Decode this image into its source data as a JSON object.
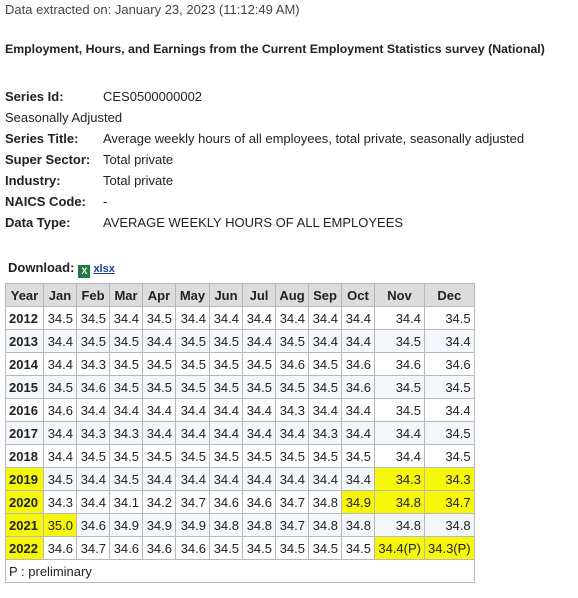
{
  "header": {
    "extracted": "Data extracted on: January 23, 2023 (11:12:49 AM)",
    "title": "Employment, Hours, and Earnings from the Current Employment Statistics survey (National)"
  },
  "series": {
    "id_label": "Series Id:",
    "id": "CES0500000002",
    "adjustment": "Seasonally Adjusted",
    "fields": [
      {
        "label": "Series Title:",
        "value": "Average weekly hours of all employees, total private, seasonally adjusted"
      },
      {
        "label": "Super Sector:",
        "value": "Total private"
      },
      {
        "label": "Industry:",
        "value": "Total private"
      },
      {
        "label": "NAICS Code:",
        "value": "-"
      },
      {
        "label": "Data Type:",
        "value": "AVERAGE WEEKLY HOURS OF ALL EMPLOYEES"
      }
    ]
  },
  "download": {
    "label": "Download:",
    "link": "xlsx"
  },
  "table": {
    "columns": [
      "Year",
      "Jan",
      "Feb",
      "Mar",
      "Apr",
      "May",
      "Jun",
      "Jul",
      "Aug",
      "Sep",
      "Oct",
      "Nov",
      "Dec"
    ],
    "rows": [
      [
        "2012",
        "34.5",
        "34.5",
        "34.4",
        "34.5",
        "34.4",
        "34.4",
        "34.4",
        "34.4",
        "34.4",
        "34.4",
        "34.4",
        "34.5"
      ],
      [
        "2013",
        "34.4",
        "34.5",
        "34.5",
        "34.4",
        "34.5",
        "34.5",
        "34.4",
        "34.5",
        "34.4",
        "34.4",
        "34.5",
        "34.4"
      ],
      [
        "2014",
        "34.4",
        "34.3",
        "34.5",
        "34.5",
        "34.5",
        "34.5",
        "34.5",
        "34.6",
        "34.5",
        "34.6",
        "34.6",
        "34.6"
      ],
      [
        "2015",
        "34.5",
        "34.6",
        "34.5",
        "34.5",
        "34.5",
        "34.5",
        "34.5",
        "34.5",
        "34.5",
        "34.6",
        "34.5",
        "34.5"
      ],
      [
        "2016",
        "34.6",
        "34.4",
        "34.4",
        "34.4",
        "34.4",
        "34.4",
        "34.4",
        "34.3",
        "34.4",
        "34.4",
        "34.5",
        "34.4"
      ],
      [
        "2017",
        "34.4",
        "34.3",
        "34.3",
        "34.4",
        "34.4",
        "34.4",
        "34.4",
        "34.4",
        "34.3",
        "34.4",
        "34.4",
        "34.5"
      ],
      [
        "2018",
        "34.4",
        "34.5",
        "34.5",
        "34.5",
        "34.5",
        "34.5",
        "34.5",
        "34.5",
        "34.5",
        "34.5",
        "34.4",
        "34.5"
      ],
      [
        "2019",
        "34.5",
        "34.4",
        "34.5",
        "34.4",
        "34.4",
        "34.4",
        "34.4",
        "34.4",
        "34.4",
        "34.4",
        "34.3",
        "34.3"
      ],
      [
        "2020",
        "34.3",
        "34.4",
        "34.1",
        "34.2",
        "34.7",
        "34.6",
        "34.6",
        "34.7",
        "34.8",
        "34.9",
        "34.8",
        "34.7"
      ],
      [
        "2021",
        "35.0",
        "34.6",
        "34.9",
        "34.9",
        "34.9",
        "34.8",
        "34.8",
        "34.7",
        "34.8",
        "34.8",
        "34.8",
        "34.8"
      ],
      [
        "2022",
        "34.6",
        "34.7",
        "34.6",
        "34.6",
        "34.6",
        "34.5",
        "34.5",
        "34.5",
        "34.5",
        "34.5",
        "34.4(P)",
        "34.3(P)"
      ]
    ],
    "footnote": "P : preliminary"
  }
}
